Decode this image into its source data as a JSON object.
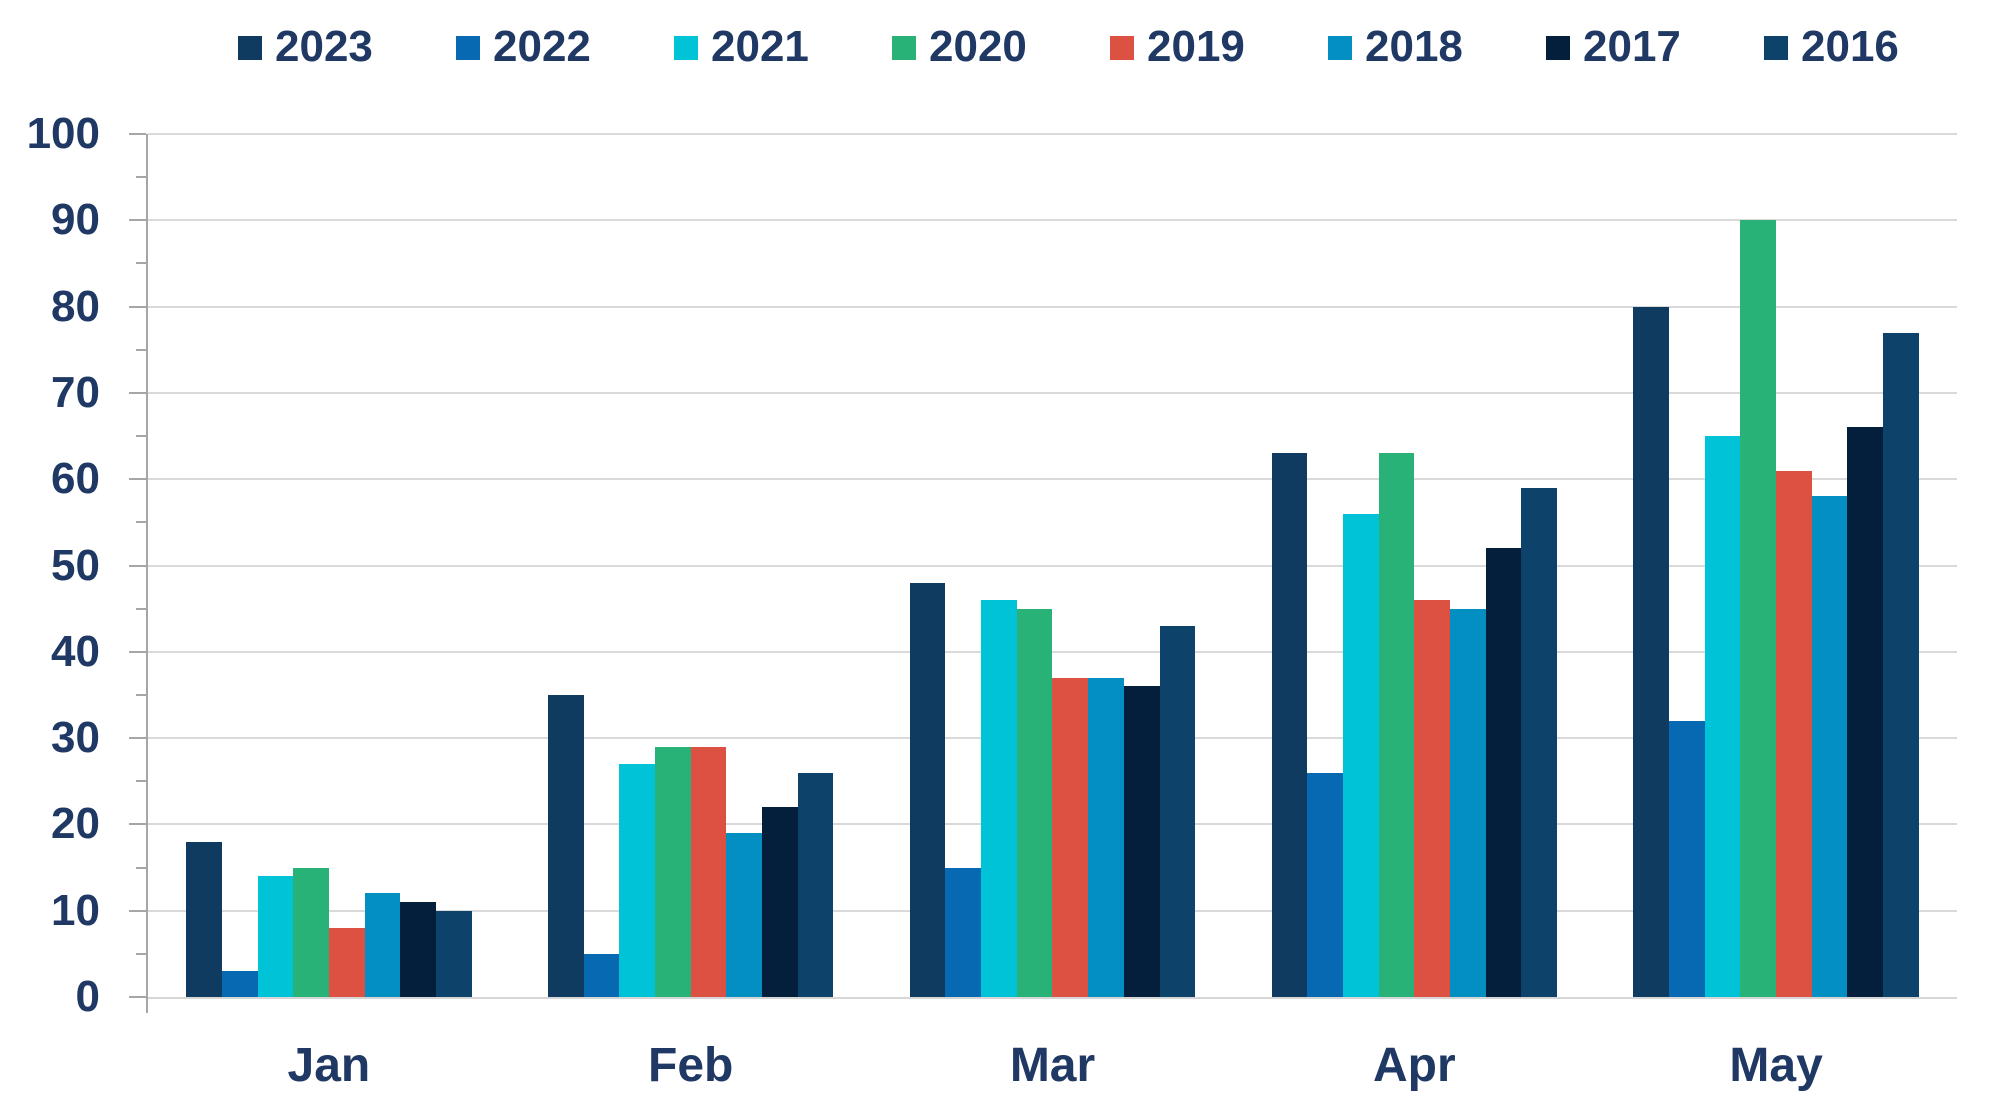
{
  "chart_data": {
    "type": "bar",
    "title": "",
    "categories": [
      "Jan",
      "Feb",
      "Mar",
      "Apr",
      "May"
    ],
    "series": [
      {
        "name": "2023",
        "color": "#0F3B61",
        "values": [
          18,
          35,
          48,
          63,
          80
        ]
      },
      {
        "name": "2022",
        "color": "#0669B2",
        "values": [
          3,
          5,
          15,
          26,
          32
        ]
      },
      {
        "name": "2021",
        "color": "#00C3D8",
        "values": [
          14,
          27,
          46,
          56,
          65
        ]
      },
      {
        "name": "2020",
        "color": "#28B277",
        "values": [
          15,
          29,
          45,
          63,
          90
        ]
      },
      {
        "name": "2019",
        "color": "#DD5143",
        "values": [
          8,
          29,
          37,
          46,
          61
        ]
      },
      {
        "name": "2018",
        "color": "#048FC3",
        "values": [
          12,
          19,
          37,
          45,
          58
        ]
      },
      {
        "name": "2017",
        "color": "#041F3B",
        "values": [
          11,
          22,
          36,
          52,
          66
        ]
      },
      {
        "name": "2016",
        "color": "#0D426A",
        "values": [
          10,
          26,
          43,
          59,
          77
        ]
      }
    ],
    "ylim": [
      0,
      100
    ],
    "y_ticks": [
      0,
      10,
      20,
      30,
      40,
      50,
      60,
      70,
      80,
      90,
      100
    ],
    "y_minor_tick_step": 5,
    "xlabel": "",
    "ylabel": "",
    "grid": "horizontal-major",
    "legend_position": "top"
  },
  "style": {
    "text_color": "#1F3864",
    "gridline_color": "#D9D9D9",
    "axis_line_color": "#A6A6A6",
    "x_axis_line_color": "#D6D6D6",
    "background": "#FFFFFF"
  }
}
